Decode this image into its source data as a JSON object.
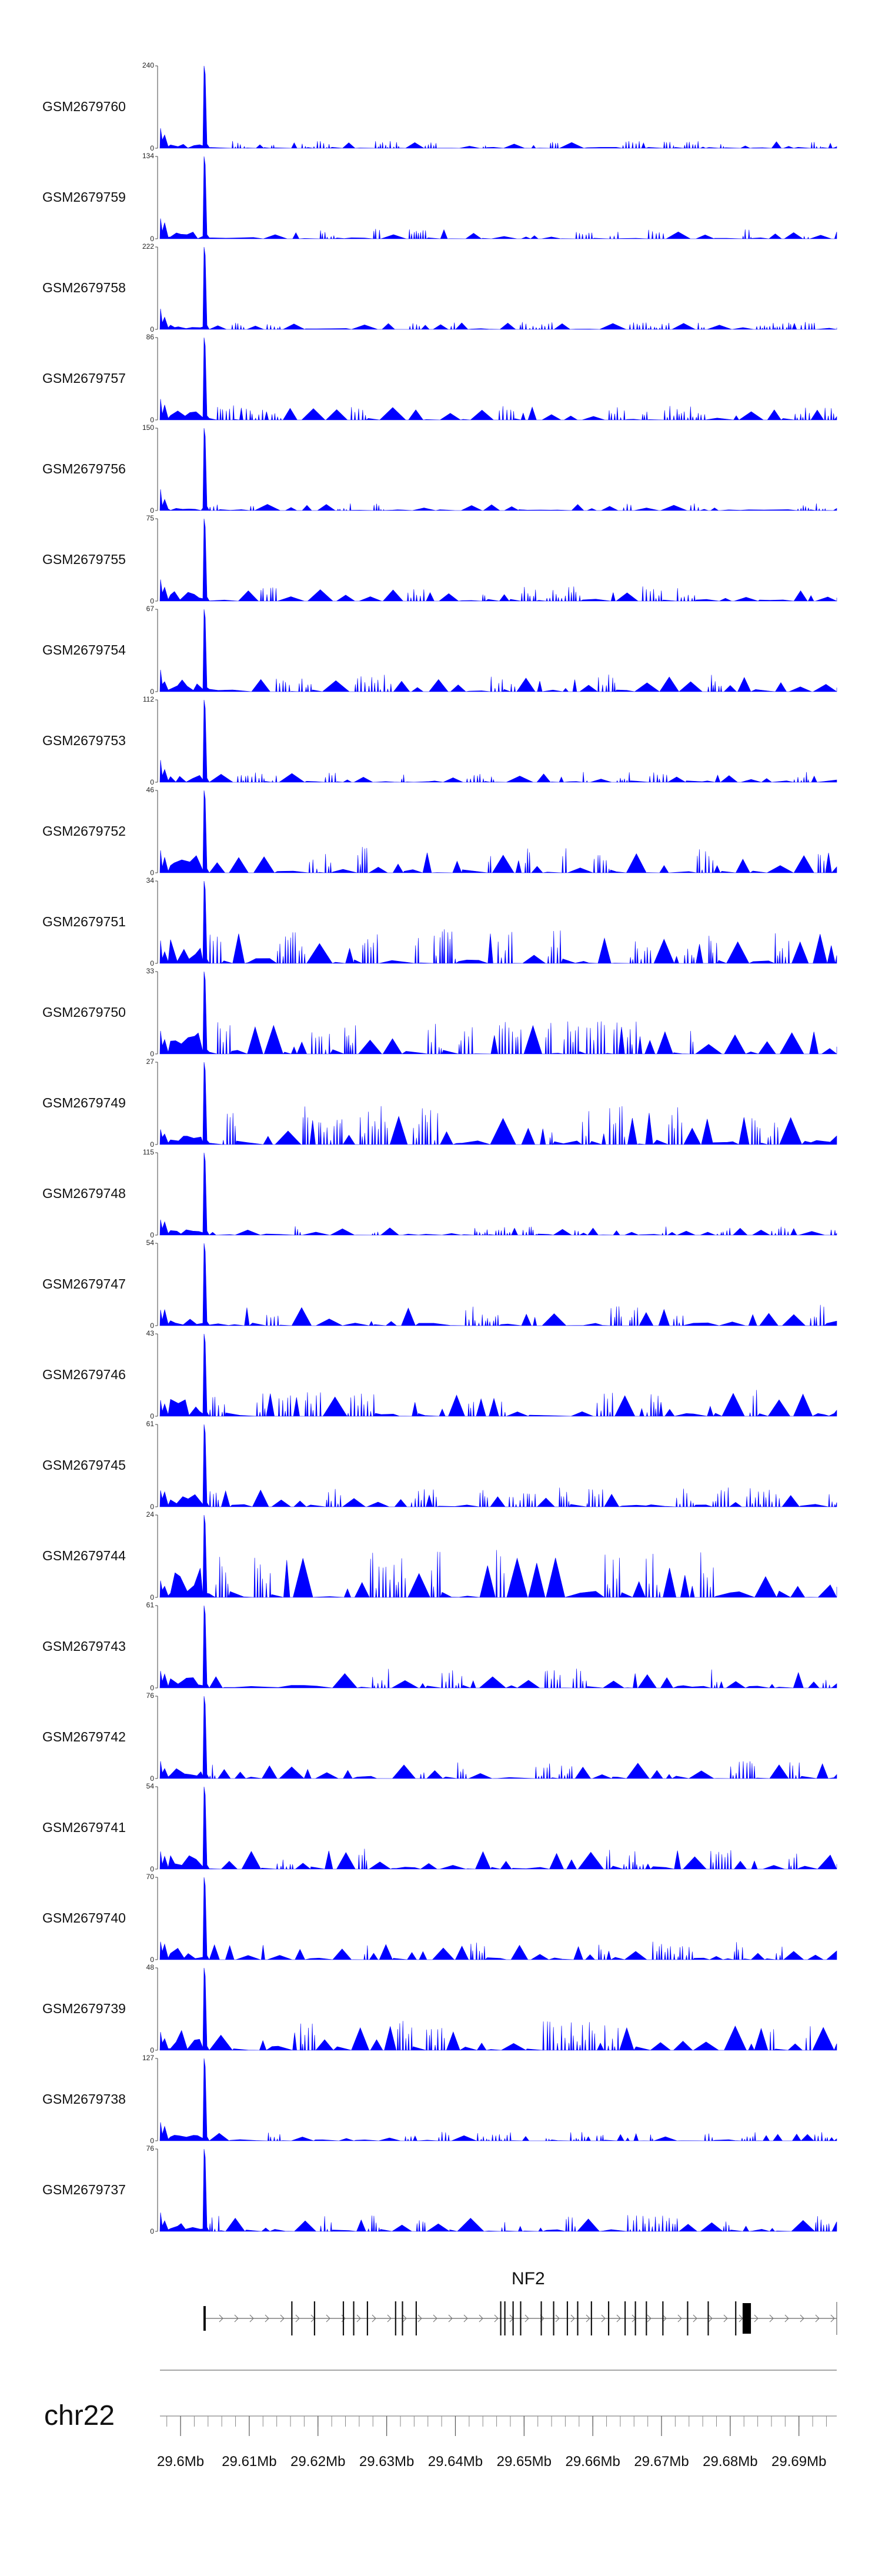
{
  "chart_data": {
    "type": "area",
    "chromosome": "chr22",
    "xlim": [
      29.597,
      29.6955
    ],
    "x_unit": "Mb",
    "x_tick_labels": [
      "29.6Mb",
      "29.61Mb",
      "29.62Mb",
      "29.63Mb",
      "29.64Mb",
      "29.65Mb",
      "29.66Mb",
      "29.67Mb",
      "29.68Mb",
      "29.69Mb"
    ],
    "x_ticks": [
      29.6,
      29.61,
      29.62,
      29.63,
      29.64,
      29.65,
      29.66,
      29.67,
      29.68,
      29.69
    ],
    "minor_tick_step": 0.002,
    "fill_color": "#0000ff",
    "peak_position": 29.6035,
    "tracks": [
      {
        "name": "GSM2679760",
        "ymax": 240,
        "peak": 240,
        "bg": 0.05
      },
      {
        "name": "GSM2679759",
        "ymax": 134,
        "peak": 134,
        "bg": 0.07
      },
      {
        "name": "GSM2679758",
        "ymax": 222,
        "peak": 222,
        "bg": 0.05
      },
      {
        "name": "GSM2679757",
        "ymax": 86,
        "peak": 86,
        "bg": 0.1
      },
      {
        "name": "GSM2679756",
        "ymax": 150,
        "peak": 150,
        "bg": 0.05
      },
      {
        "name": "GSM2679755",
        "ymax": 75,
        "peak": 75,
        "bg": 0.1
      },
      {
        "name": "GSM2679754",
        "ymax": 67,
        "peak": 67,
        "bg": 0.12
      },
      {
        "name": "GSM2679753",
        "ymax": 112,
        "peak": 112,
        "bg": 0.07
      },
      {
        "name": "GSM2679752",
        "ymax": 46,
        "peak": 46,
        "bg": 0.18
      },
      {
        "name": "GSM2679751",
        "ymax": 34,
        "peak": 34,
        "bg": 0.24
      },
      {
        "name": "GSM2679750",
        "ymax": 33,
        "peak": 33,
        "bg": 0.22
      },
      {
        "name": "GSM2679749",
        "ymax": 27,
        "peak": 27,
        "bg": 0.26
      },
      {
        "name": "GSM2679748",
        "ymax": 115,
        "peak": 115,
        "bg": 0.06
      },
      {
        "name": "GSM2679747",
        "ymax": 54,
        "peak": 54,
        "bg": 0.14
      },
      {
        "name": "GSM2679746",
        "ymax": 43,
        "peak": 43,
        "bg": 0.18
      },
      {
        "name": "GSM2679745",
        "ymax": 61,
        "peak": 61,
        "bg": 0.13
      },
      {
        "name": "GSM2679744",
        "ymax": 24,
        "peak": 24,
        "bg": 0.32
      },
      {
        "name": "GSM2679743",
        "ymax": 61,
        "peak": 61,
        "bg": 0.13
      },
      {
        "name": "GSM2679742",
        "ymax": 76,
        "peak": 76,
        "bg": 0.12
      },
      {
        "name": "GSM2679741",
        "ymax": 54,
        "peak": 54,
        "bg": 0.15
      },
      {
        "name": "GSM2679740",
        "ymax": 70,
        "peak": 70,
        "bg": 0.13
      },
      {
        "name": "GSM2679739",
        "ymax": 48,
        "peak": 48,
        "bg": 0.2
      },
      {
        "name": "GSM2679738",
        "ymax": 127,
        "peak": 127,
        "bg": 0.06
      },
      {
        "name": "GSM2679737",
        "ymax": 76,
        "peak": 76,
        "bg": 0.11
      }
    ],
    "gene": {
      "name": "NF2",
      "start": 29.6035,
      "end": 29.6955,
      "strand": "+",
      "exons": [
        29.6035,
        29.6162,
        29.6195,
        29.6237,
        29.6252,
        29.6272,
        29.6313,
        29.6323,
        29.6343,
        29.6466,
        29.6472,
        29.6484,
        29.6495,
        29.6525,
        29.6543,
        29.6563,
        29.6578,
        29.6598,
        29.6623,
        29.6647,
        29.6662,
        29.6678,
        29.6702,
        29.6738,
        29.6768,
        29.6808
      ],
      "utr_end": [
        29.6818,
        29.6825
      ]
    },
    "y_min_label": "0"
  }
}
